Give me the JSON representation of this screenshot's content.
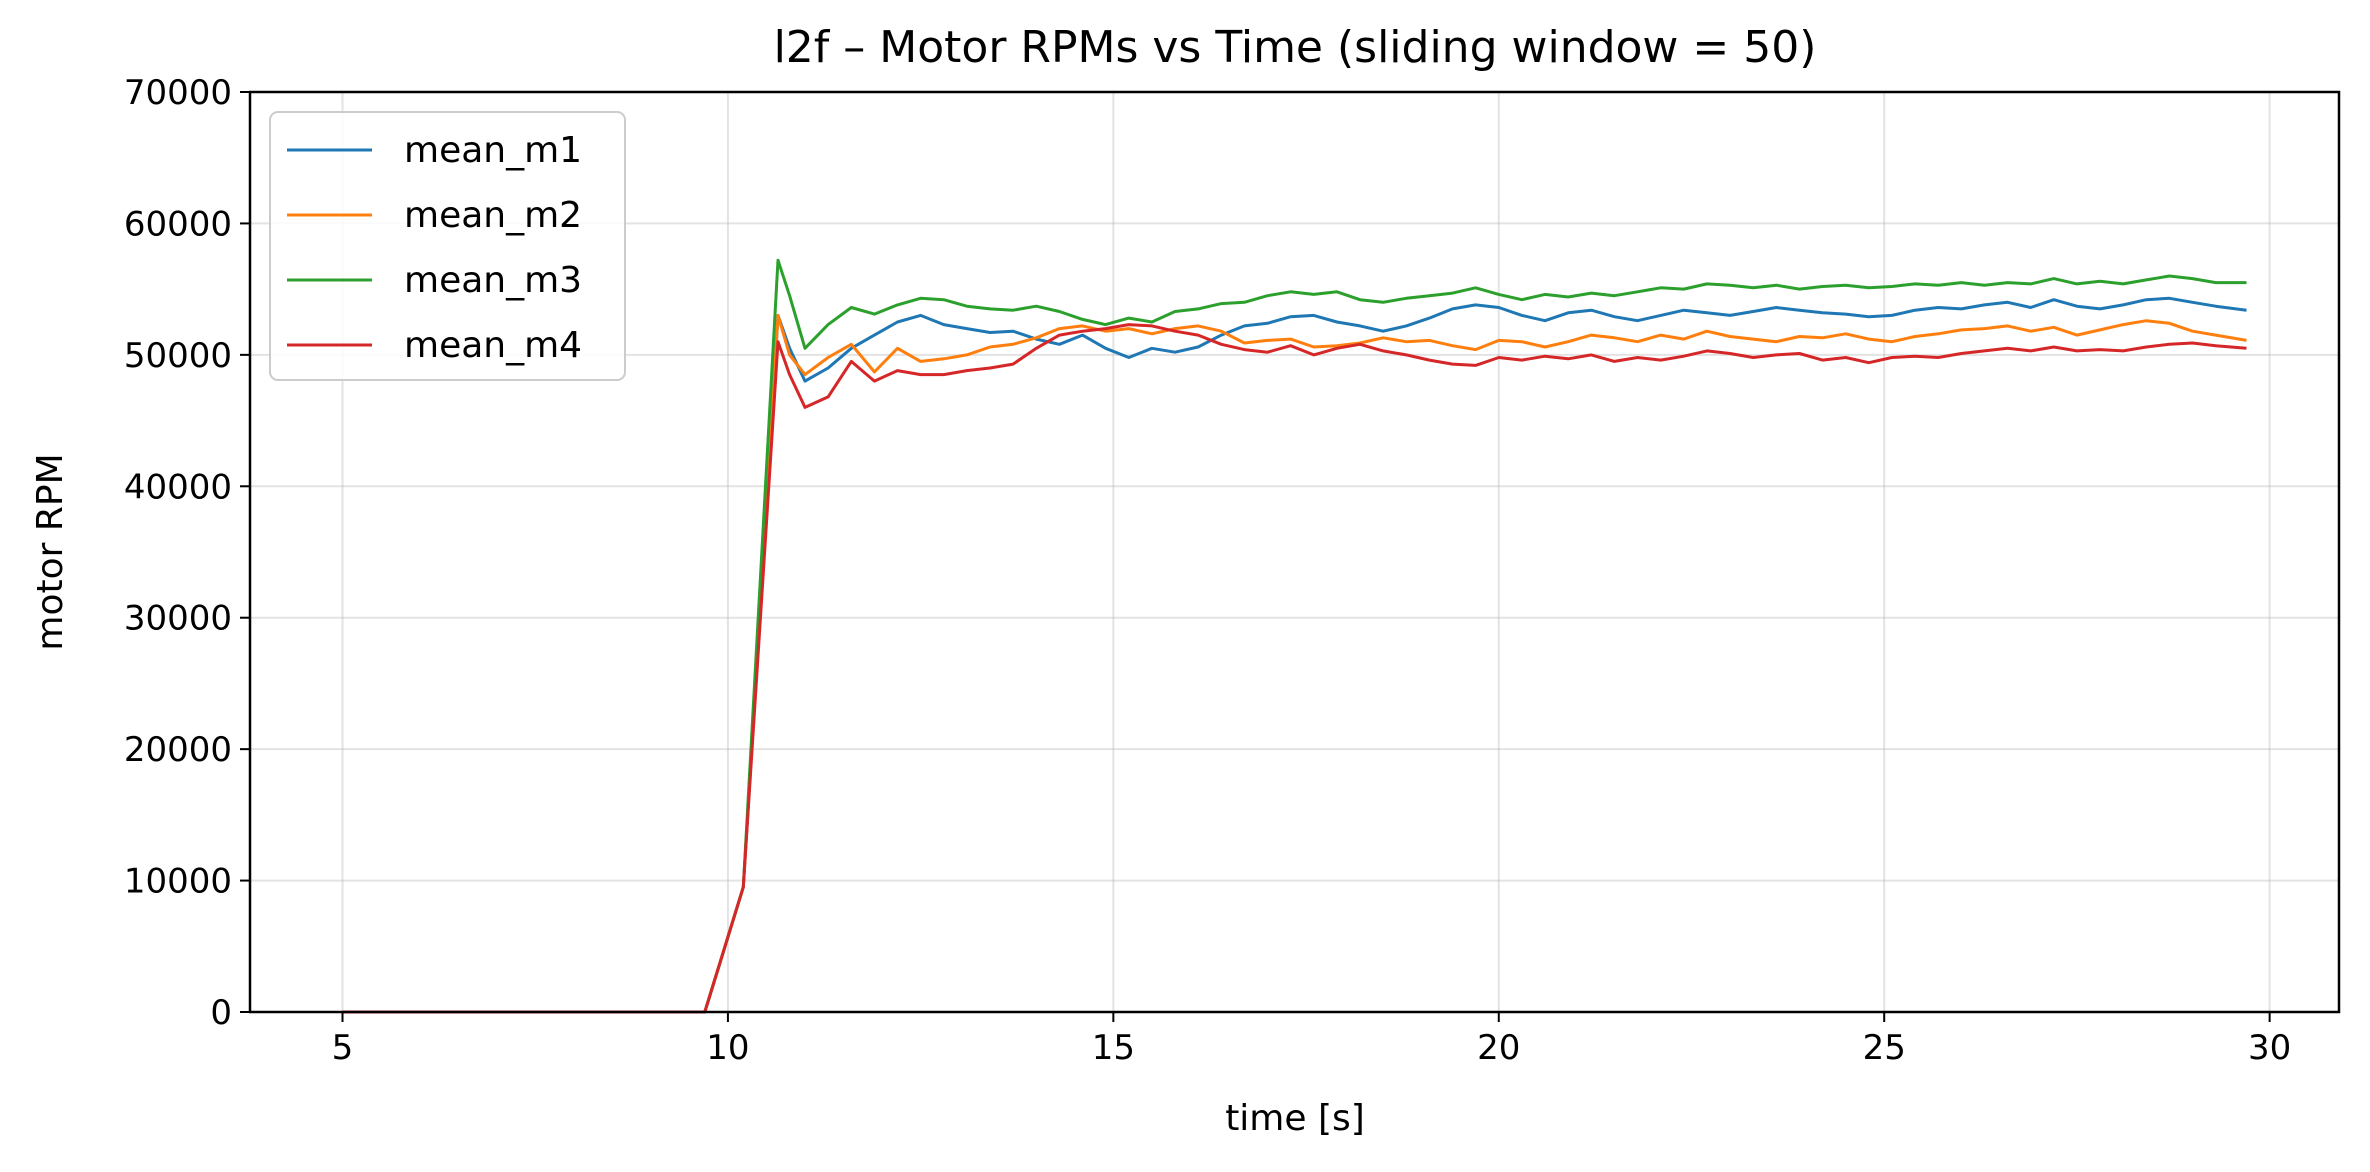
{
  "chart_data": {
    "type": "line",
    "title": "l2f – Motor RPMs vs Time (sliding window = 50)",
    "xlabel": "time [s]",
    "ylabel": "motor RPM",
    "xlim": [
      3.8,
      30.9
    ],
    "ylim": [
      0,
      70000
    ],
    "xticks": [
      5,
      10,
      15,
      20,
      25,
      30
    ],
    "yticks": [
      0,
      10000,
      20000,
      30000,
      40000,
      50000,
      60000,
      70000
    ],
    "grid": true,
    "legend_position": "upper-left",
    "series": [
      {
        "name": "mean_m1",
        "color": "#1f77b4",
        "x": [
          5.0,
          9.7,
          10.2,
          10.65,
          10.8,
          11.0,
          11.3,
          11.6,
          11.9,
          12.2,
          12.5,
          12.8,
          13.1,
          13.4,
          13.7,
          14.0,
          14.3,
          14.6,
          14.9,
          15.2,
          15.5,
          15.8,
          16.1,
          16.4,
          16.7,
          17.0,
          17.3,
          17.6,
          17.9,
          18.2,
          18.5,
          18.8,
          19.1,
          19.4,
          19.7,
          20.0,
          20.3,
          20.6,
          20.9,
          21.2,
          21.5,
          21.8,
          22.1,
          22.4,
          22.7,
          23.0,
          23.3,
          23.6,
          23.9,
          24.2,
          24.5,
          24.8,
          25.1,
          25.4,
          25.7,
          26.0,
          26.3,
          26.6,
          26.9,
          27.2,
          27.5,
          27.8,
          28.1,
          28.4,
          28.7,
          29.0,
          29.3,
          29.7
        ],
        "y": [
          0,
          0,
          9500,
          53000,
          50500,
          48000,
          49000,
          50500,
          51500,
          52500,
          53000,
          52300,
          52000,
          51700,
          51800,
          51200,
          50800,
          51500,
          50500,
          49800,
          50500,
          50200,
          50600,
          51500,
          52200,
          52400,
          52900,
          53000,
          52500,
          52200,
          51800,
          52200,
          52800,
          53500,
          53800,
          53600,
          53000,
          52600,
          53200,
          53400,
          52900,
          52600,
          53000,
          53400,
          53200,
          53000,
          53300,
          53600,
          53400,
          53200,
          53100,
          52900,
          53000,
          53400,
          53600,
          53500,
          53800,
          54000,
          53600,
          54200,
          53700,
          53500,
          53800,
          54200,
          54300,
          54000,
          53700,
          53400
        ]
      },
      {
        "name": "mean_m2",
        "color": "#ff7f0e",
        "x": [
          5.0,
          9.7,
          10.2,
          10.65,
          10.8,
          11.0,
          11.3,
          11.6,
          11.9,
          12.2,
          12.5,
          12.8,
          13.1,
          13.4,
          13.7,
          14.0,
          14.3,
          14.6,
          14.9,
          15.2,
          15.5,
          15.8,
          16.1,
          16.4,
          16.7,
          17.0,
          17.3,
          17.6,
          17.9,
          18.2,
          18.5,
          18.8,
          19.1,
          19.4,
          19.7,
          20.0,
          20.3,
          20.6,
          20.9,
          21.2,
          21.5,
          21.8,
          22.1,
          22.4,
          22.7,
          23.0,
          23.3,
          23.6,
          23.9,
          24.2,
          24.5,
          24.8,
          25.1,
          25.4,
          25.7,
          26.0,
          26.3,
          26.6,
          26.9,
          27.2,
          27.5,
          27.8,
          28.1,
          28.4,
          28.7,
          29.0,
          29.3,
          29.7
        ],
        "y": [
          0,
          0,
          9500,
          53000,
          50000,
          48500,
          49800,
          50800,
          48700,
          50500,
          49500,
          49700,
          50000,
          50600,
          50800,
          51300,
          52000,
          52200,
          51800,
          52000,
          51600,
          52000,
          52200,
          51800,
          50900,
          51100,
          51200,
          50600,
          50700,
          50900,
          51300,
          51000,
          51100,
          50700,
          50400,
          51100,
          51000,
          50600,
          51000,
          51500,
          51300,
          51000,
          51500,
          51200,
          51800,
          51400,
          51200,
          51000,
          51400,
          51300,
          51600,
          51200,
          51000,
          51400,
          51600,
          51900,
          52000,
          52200,
          51800,
          52100,
          51500,
          51900,
          52300,
          52600,
          52400,
          51800,
          51500,
          51100
        ]
      },
      {
        "name": "mean_m3",
        "color": "#2ca02c",
        "x": [
          5.0,
          9.7,
          10.2,
          10.65,
          10.8,
          11.0,
          11.3,
          11.6,
          11.9,
          12.2,
          12.5,
          12.8,
          13.1,
          13.4,
          13.7,
          14.0,
          14.3,
          14.6,
          14.9,
          15.2,
          15.5,
          15.8,
          16.1,
          16.4,
          16.7,
          17.0,
          17.3,
          17.6,
          17.9,
          18.2,
          18.5,
          18.8,
          19.1,
          19.4,
          19.7,
          20.0,
          20.3,
          20.6,
          20.9,
          21.2,
          21.5,
          21.8,
          22.1,
          22.4,
          22.7,
          23.0,
          23.3,
          23.6,
          23.9,
          24.2,
          24.5,
          24.8,
          25.1,
          25.4,
          25.7,
          26.0,
          26.3,
          26.6,
          26.9,
          27.2,
          27.5,
          27.8,
          28.1,
          28.4,
          28.7,
          29.0,
          29.3,
          29.7
        ],
        "y": [
          0,
          0,
          9500,
          57200,
          54500,
          50500,
          52300,
          53600,
          53100,
          53800,
          54300,
          54200,
          53700,
          53500,
          53400,
          53700,
          53300,
          52700,
          52300,
          52800,
          52500,
          53300,
          53500,
          53900,
          54000,
          54500,
          54800,
          54600,
          54800,
          54200,
          54000,
          54300,
          54500,
          54700,
          55100,
          54600,
          54200,
          54600,
          54400,
          54700,
          54500,
          54800,
          55100,
          55000,
          55400,
          55300,
          55100,
          55300,
          55000,
          55200,
          55300,
          55100,
          55200,
          55400,
          55300,
          55500,
          55300,
          55500,
          55400,
          55800,
          55400,
          55600,
          55400,
          55700,
          56000,
          55800,
          55500,
          55500
        ]
      },
      {
        "name": "mean_m4",
        "color": "#d62728",
        "x": [
          5.0,
          9.7,
          10.2,
          10.65,
          10.8,
          11.0,
          11.3,
          11.6,
          11.9,
          12.2,
          12.5,
          12.8,
          13.1,
          13.4,
          13.7,
          14.0,
          14.3,
          14.6,
          14.9,
          15.2,
          15.5,
          15.8,
          16.1,
          16.4,
          16.7,
          17.0,
          17.3,
          17.6,
          17.9,
          18.2,
          18.5,
          18.8,
          19.1,
          19.4,
          19.7,
          20.0,
          20.3,
          20.6,
          20.9,
          21.2,
          21.5,
          21.8,
          22.1,
          22.4,
          22.7,
          23.0,
          23.3,
          23.6,
          23.9,
          24.2,
          24.5,
          24.8,
          25.1,
          25.4,
          25.7,
          26.0,
          26.3,
          26.6,
          26.9,
          27.2,
          27.5,
          27.8,
          28.1,
          28.4,
          28.7,
          29.0,
          29.3,
          29.7
        ],
        "y": [
          0,
          0,
          9500,
          51000,
          48500,
          46000,
          46800,
          49500,
          48000,
          48800,
          48500,
          48500,
          48800,
          49000,
          49300,
          50500,
          51500,
          51800,
          52000,
          52300,
          52200,
          51800,
          51500,
          50800,
          50400,
          50200,
          50700,
          50000,
          50500,
          50800,
          50300,
          50000,
          49600,
          49300,
          49200,
          49800,
          49600,
          49900,
          49700,
          50000,
          49500,
          49800,
          49600,
          49900,
          50300,
          50100,
          49800,
          50000,
          50100,
          49600,
          49800,
          49400,
          49800,
          49900,
          49800,
          50100,
          50300,
          50500,
          50300,
          50600,
          50300,
          50400,
          50300,
          50600,
          50800,
          50900,
          50700,
          50500
        ]
      }
    ]
  }
}
